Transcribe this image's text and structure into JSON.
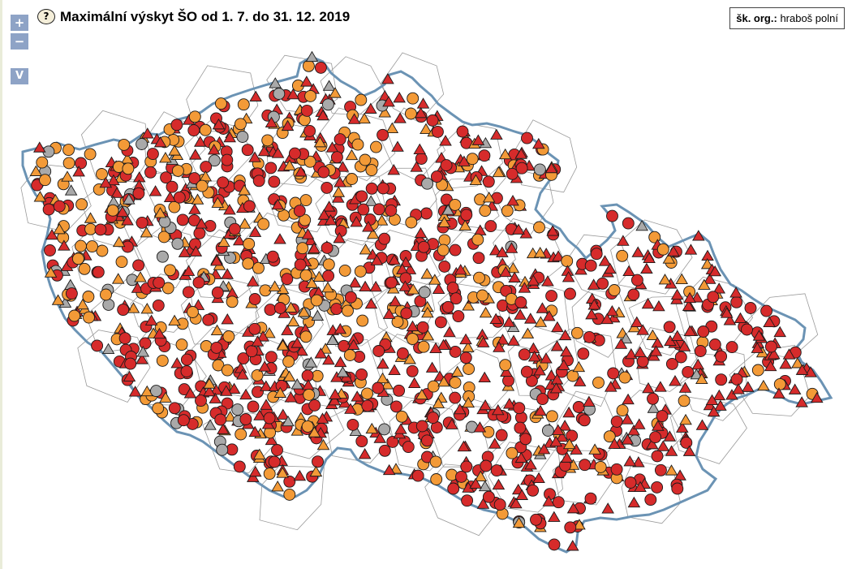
{
  "header": {
    "title": "Maximální výskyt ŠO od 1. 7. do 31. 12. 2019",
    "help_glyph": "?"
  },
  "controls": {
    "zoom_in": "+",
    "zoom_out": "−",
    "view": "V"
  },
  "organism": {
    "label": "šk. org.:",
    "value": "hraboš polní"
  },
  "legend_colors": {
    "high": "#d62b2b",
    "medium": "#f39a37",
    "none": "#a9a9a9",
    "border": "#6b93b4",
    "district": "#9a9a9a"
  },
  "marker_shapes": [
    "circle",
    "triangle"
  ]
}
